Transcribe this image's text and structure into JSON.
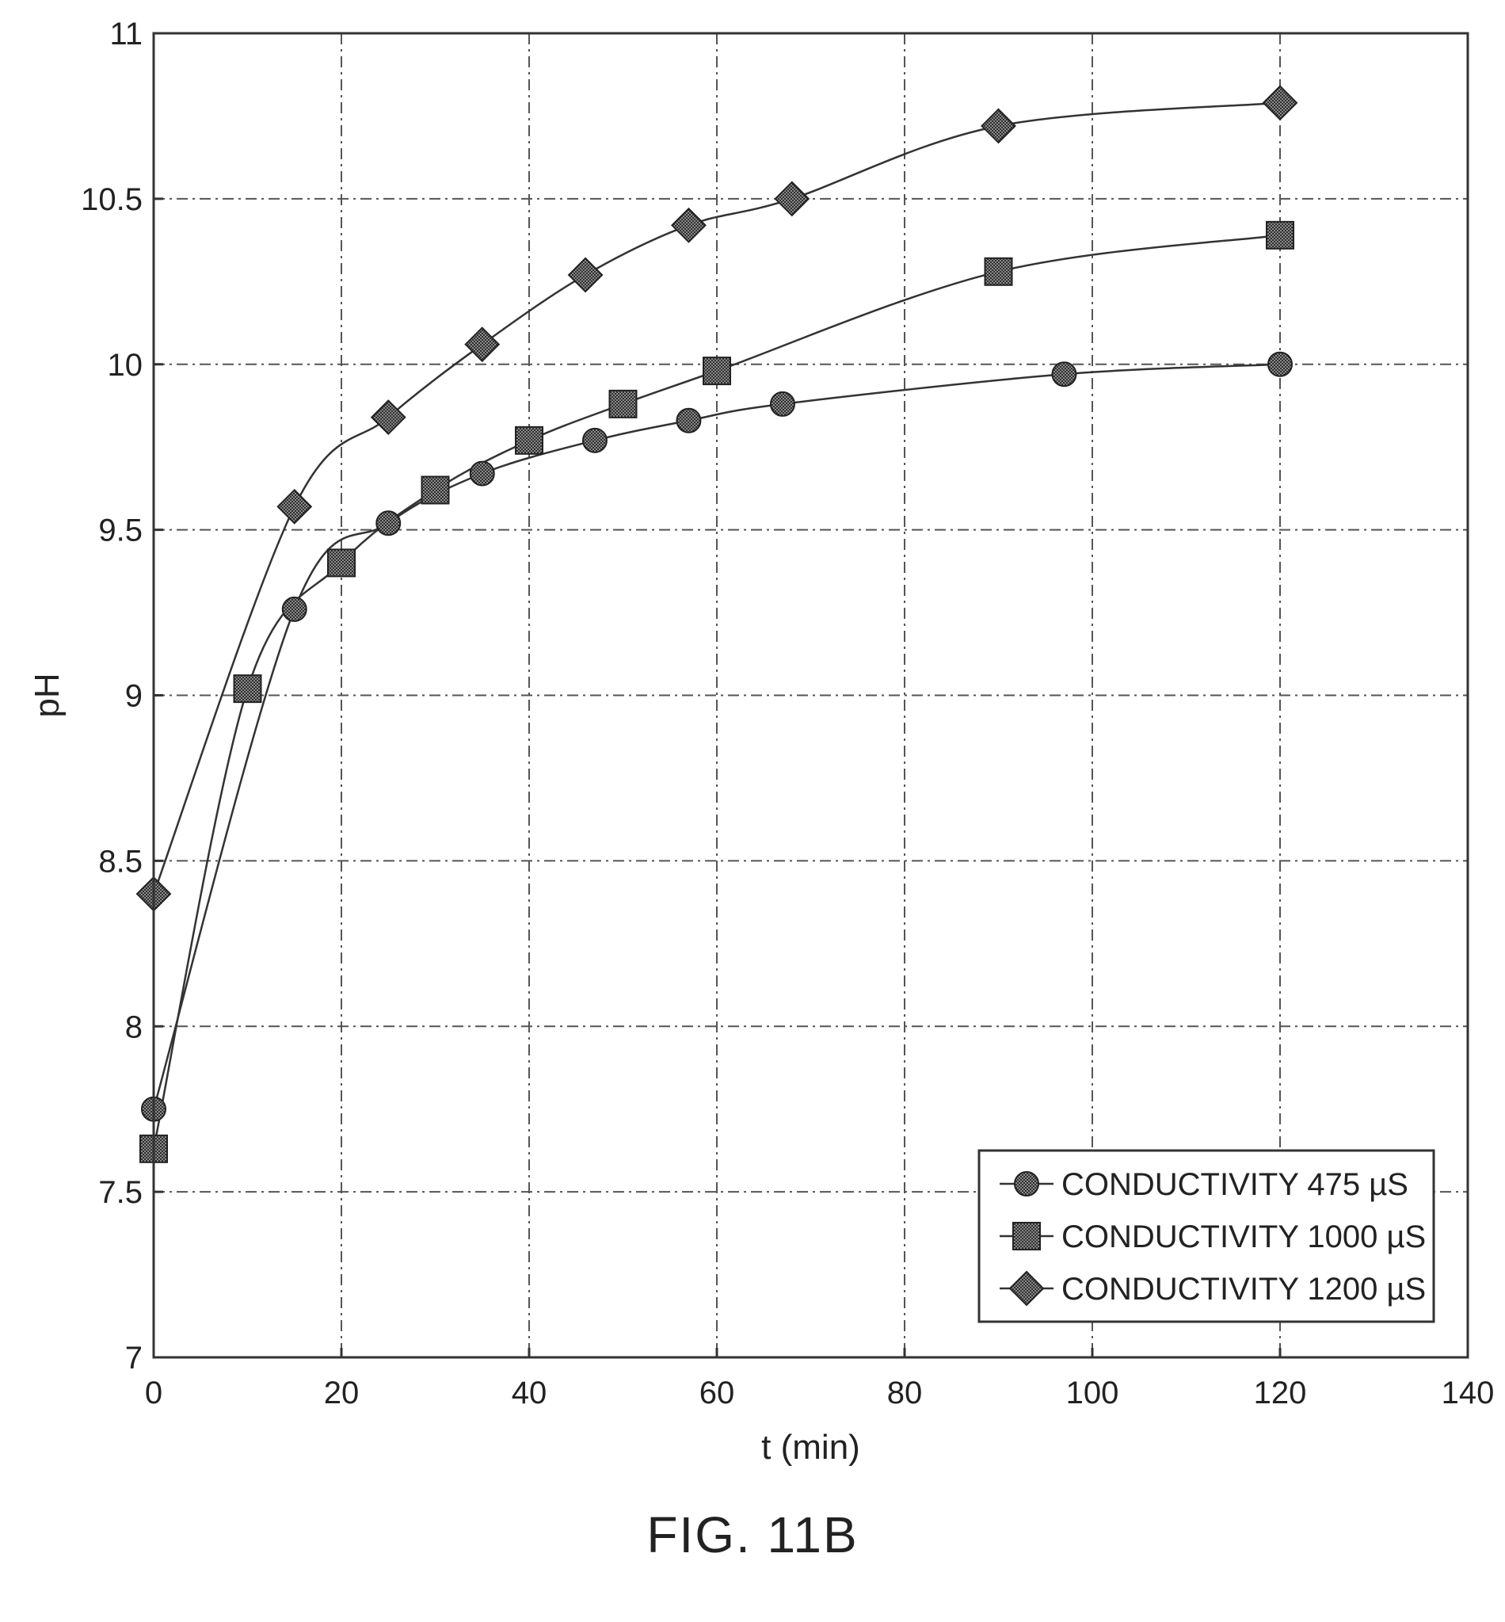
{
  "figure_caption": "FIG. 11B",
  "chart_data": {
    "type": "line",
    "title": "",
    "xlabel": "t (min)",
    "ylabel": "pH",
    "xlim": [
      0,
      140
    ],
    "ylim": [
      7,
      11
    ],
    "xticks": [
      0,
      20,
      40,
      60,
      80,
      100,
      120,
      140
    ],
    "yticks": [
      7,
      7.5,
      8,
      8.5,
      9,
      9.5,
      10,
      10.5,
      11
    ],
    "xtick_labels": [
      "0",
      "20",
      "40",
      "60",
      "80",
      "100",
      "120",
      "140"
    ],
    "ytick_labels": [
      "7",
      "7.5",
      "8",
      "8.5",
      "9",
      "9.5",
      "10",
      "10.5",
      "11"
    ],
    "grid": true,
    "legend_position": "bottom-right",
    "series": [
      {
        "name": "CONDUCTIVITY 475 µS",
        "marker": "circle",
        "x": [
          0,
          15,
          25,
          35,
          47,
          57,
          67,
          97,
          120
        ],
        "y": [
          7.75,
          9.26,
          9.52,
          9.67,
          9.77,
          9.83,
          9.88,
          9.97,
          10.0
        ]
      },
      {
        "name": "CONDUCTIVITY 1000 µS",
        "marker": "square",
        "x": [
          0,
          10,
          20,
          30,
          40,
          50,
          60,
          90,
          120
        ],
        "y": [
          7.63,
          9.02,
          9.4,
          9.62,
          9.77,
          9.88,
          9.98,
          10.28,
          10.39
        ]
      },
      {
        "name": "CONDUCTIVITY 1200 µS",
        "marker": "diamond",
        "x": [
          0,
          15,
          25,
          35,
          46,
          57,
          68,
          90,
          120
        ],
        "y": [
          8.4,
          9.57,
          9.84,
          10.06,
          10.27,
          10.42,
          10.5,
          10.72,
          10.79
        ]
      }
    ],
    "colors": {
      "marker_fill": "#555555",
      "line": "#333333",
      "grid": "#555555"
    }
  }
}
